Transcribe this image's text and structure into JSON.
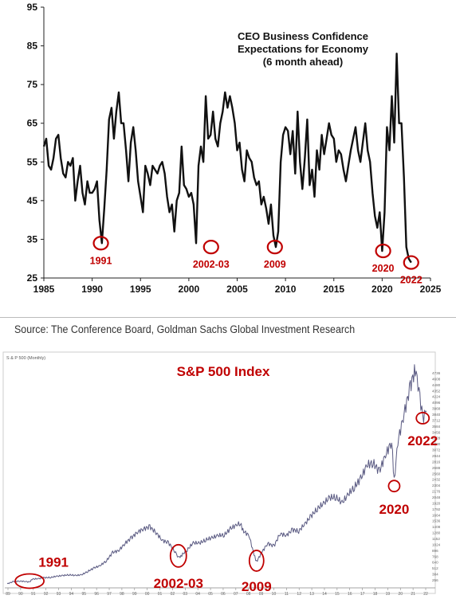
{
  "chart_data": [
    {
      "type": "line",
      "title": "CEO Business Confidence\nExpectations for Economy\n(6 month ahead)",
      "title_lines": [
        "CEO Business Confidence",
        "Expectations for Economy",
        "(6 month ahead)"
      ],
      "xlim": [
        1985,
        2025
      ],
      "ylim": [
        25,
        95
      ],
      "x_ticks": [
        1985,
        1990,
        1995,
        2000,
        2005,
        2010,
        2015,
        2020,
        2025
      ],
      "y_ticks": [
        25,
        35,
        45,
        55,
        65,
        75,
        85,
        95
      ],
      "line_color": "#111111",
      "annotation_color": "#c00000",
      "annotations": [
        {
          "label": "1991",
          "x": 1990.9,
          "y": 34
        },
        {
          "label": "2002-03",
          "x": 2002.3,
          "y": 33
        },
        {
          "label": "2009",
          "x": 2008.9,
          "y": 33
        },
        {
          "label": "2020",
          "x": 2020.1,
          "y": 32
        },
        {
          "label": "2022",
          "x": 2023.0,
          "y": 29
        }
      ],
      "series": [
        {
          "x": [
            1985.0,
            1985.25,
            1985.5,
            1985.75,
            1986.0,
            1986.25,
            1986.5,
            1986.75,
            1987.0,
            1987.25,
            1987.5,
            1987.75,
            1988.0,
            1988.25,
            1988.5,
            1988.75,
            1989.0,
            1989.25,
            1989.5,
            1989.75,
            1990.0,
            1990.25,
            1990.5,
            1990.75,
            1991.0,
            1991.25,
            1991.5,
            1991.75,
            1992.0,
            1992.25,
            1992.5,
            1992.75,
            1993.0,
            1993.25,
            1993.5,
            1993.75,
            1994.0,
            1994.25,
            1994.5,
            1994.75,
            1995.0,
            1995.25,
            1995.5,
            1995.75,
            1996.0,
            1996.25,
            1996.5,
            1996.75,
            1997.0,
            1997.25,
            1997.5,
            1997.75,
            1998.0,
            1998.25,
            1998.5,
            1998.75,
            1999.0,
            1999.25,
            1999.5,
            1999.75,
            2000.0,
            2000.25,
            2000.5,
            2000.75,
            2001.0,
            2001.25,
            2001.5,
            2001.75,
            2002.0,
            2002.25,
            2002.5,
            2002.75,
            2003.0,
            2003.25,
            2003.5,
            2003.75,
            2004.0,
            2004.25,
            2004.5,
            2004.75,
            2005.0,
            2005.25,
            2005.5,
            2005.75,
            2006.0,
            2006.25,
            2006.5,
            2006.75,
            2007.0,
            2007.25,
            2007.5,
            2007.75,
            2008.0,
            2008.25,
            2008.5,
            2008.75,
            2009.0,
            2009.25,
            2009.5,
            2009.75,
            2010.0,
            2010.25,
            2010.5,
            2010.75,
            2011.0,
            2011.25,
            2011.5,
            2011.75,
            2012.0,
            2012.25,
            2012.5,
            2012.75,
            2013.0,
            2013.25,
            2013.5,
            2013.75,
            2014.0,
            2014.25,
            2014.5,
            2014.75,
            2015.0,
            2015.25,
            2015.5,
            2015.75,
            2016.0,
            2016.25,
            2016.5,
            2016.75,
            2017.0,
            2017.25,
            2017.5,
            2017.75,
            2018.0,
            2018.25,
            2018.5,
            2018.75,
            2019.0,
            2019.25,
            2019.5,
            2019.75,
            2020.0,
            2020.25,
            2020.5,
            2020.75,
            2021.0,
            2021.25,
            2021.5,
            2021.75,
            2022.0,
            2022.25,
            2022.5,
            2022.75,
            2023.0
          ],
          "y": [
            59,
            61,
            54,
            53,
            56,
            61,
            62,
            56,
            52,
            51,
            55,
            54,
            56,
            45,
            50,
            54,
            47,
            44,
            50,
            47,
            47,
            48,
            50,
            40,
            34,
            43,
            53,
            66,
            69,
            61,
            68,
            73,
            65,
            65,
            58,
            50,
            60,
            64,
            58,
            50,
            46,
            42,
            54,
            52,
            49,
            54,
            53,
            52,
            54,
            55,
            52,
            46,
            42,
            44,
            37,
            45,
            47,
            59,
            49,
            48,
            46,
            47,
            44,
            34,
            54,
            59,
            55,
            72,
            61,
            62,
            68,
            61,
            59,
            65,
            68,
            73,
            69,
            72,
            69,
            65,
            58,
            60,
            53,
            50,
            58,
            56,
            55,
            51,
            49,
            50,
            44,
            46,
            43,
            39,
            44,
            36,
            33,
            37,
            55,
            62,
            64,
            63,
            57,
            63,
            52,
            68,
            55,
            48,
            56,
            66,
            49,
            53,
            46,
            58,
            53,
            62,
            57,
            61,
            65,
            62,
            61,
            55,
            58,
            57,
            53,
            50,
            54,
            58,
            61,
            64,
            58,
            55,
            60,
            65,
            58,
            55,
            47,
            41,
            38,
            42,
            32,
            42,
            64,
            58,
            72,
            60,
            83,
            65,
            65,
            51,
            33,
            30,
            29
          ]
        }
      ]
    },
    {
      "type": "line",
      "title": "S&P 500 Index",
      "header_small": "S & P 500 (Monthly)",
      "line_color": "#5a5a82",
      "annotation_color": "#c00000",
      "x_tick_labels": [
        "89",
        "90",
        "91",
        "92",
        "93",
        "94",
        "95",
        "96",
        "97",
        "98",
        "99",
        "00",
        "01",
        "02",
        "03",
        "04",
        "05",
        "06",
        "07",
        "08",
        "09",
        "10",
        "11",
        "12",
        "13",
        "14",
        "15",
        "16",
        "17",
        "18",
        "19",
        "20",
        "21",
        "22"
      ],
      "y_tick_labels": [
        "4736",
        "4608",
        "4480",
        "4352",
        "4224",
        "4096",
        "3968",
        "3840",
        "3712",
        "3584",
        "3456",
        "3328",
        "3200",
        "3072",
        "2944",
        "2816",
        "2688",
        "2560",
        "2432",
        "2304",
        "2176",
        "2048",
        "1920",
        "1792",
        "1664",
        "1536",
        "1408",
        "1280",
        "1152",
        "1024",
        "896",
        "768",
        "640",
        "512",
        "384",
        "256"
      ],
      "annotations": [
        {
          "label": "1991",
          "x": 1990.8,
          "y": 340
        },
        {
          "label": "2002-03",
          "x": 2002.8,
          "y": 860
        },
        {
          "label": "2009",
          "x": 2009.1,
          "y": 760
        },
        {
          "label": "2020",
          "x": 2020.2,
          "y": 2300
        },
        {
          "label": "2022",
          "x": 2022.5,
          "y": 3700
        }
      ],
      "series": [
        {
          "x": [
            1989.0,
            1989.5,
            1990.0,
            1990.5,
            1990.8,
            1991.0,
            1991.5,
            1992.0,
            1992.5,
            1993.0,
            1993.5,
            1994.0,
            1994.5,
            1995.0,
            1995.5,
            1996.0,
            1996.5,
            1997.0,
            1997.5,
            1998.0,
            1998.5,
            1999.0,
            1999.5,
            2000.0,
            2000.5,
            2001.0,
            2001.5,
            2002.0,
            2002.5,
            2002.8,
            2003.0,
            2003.5,
            2004.0,
            2004.5,
            2005.0,
            2005.5,
            2006.0,
            2006.5,
            2007.0,
            2007.5,
            2007.8,
            2008.0,
            2008.5,
            2008.9,
            2009.1,
            2009.5,
            2010.0,
            2010.5,
            2011.0,
            2011.5,
            2012.0,
            2012.5,
            2013.0,
            2013.5,
            2014.0,
            2014.5,
            2015.0,
            2015.5,
            2016.0,
            2016.5,
            2017.0,
            2017.5,
            2018.0,
            2018.5,
            2019.0,
            2019.5,
            2020.0,
            2020.2,
            2020.5,
            2021.0,
            2021.5,
            2021.9,
            2022.2,
            2022.5,
            2022.8
          ],
          "y": [
            285,
            330,
            340,
            330,
            320,
            380,
            390,
            410,
            415,
            440,
            455,
            470,
            455,
            470,
            540,
            610,
            660,
            760,
            930,
            970,
            1120,
            1230,
            1350,
            1420,
            1460,
            1340,
            1180,
            1130,
            960,
            830,
            860,
            980,
            1130,
            1120,
            1190,
            1230,
            1280,
            1290,
            1420,
            1500,
            1530,
            1380,
            1280,
            880,
            740,
            920,
            1120,
            1060,
            1320,
            1280,
            1400,
            1370,
            1520,
            1680,
            1830,
            1940,
            2060,
            2070,
            1950,
            2130,
            2280,
            2450,
            2730,
            2780,
            2600,
            2940,
            3220,
            2400,
            3220,
            3800,
            4350,
            4720,
            4300,
            3700,
            3850
          ]
        }
      ]
    },
    {
      "type": "text",
      "source": "Source: The Conference Board, Goldman Sachs Global Investment Research"
    }
  ]
}
